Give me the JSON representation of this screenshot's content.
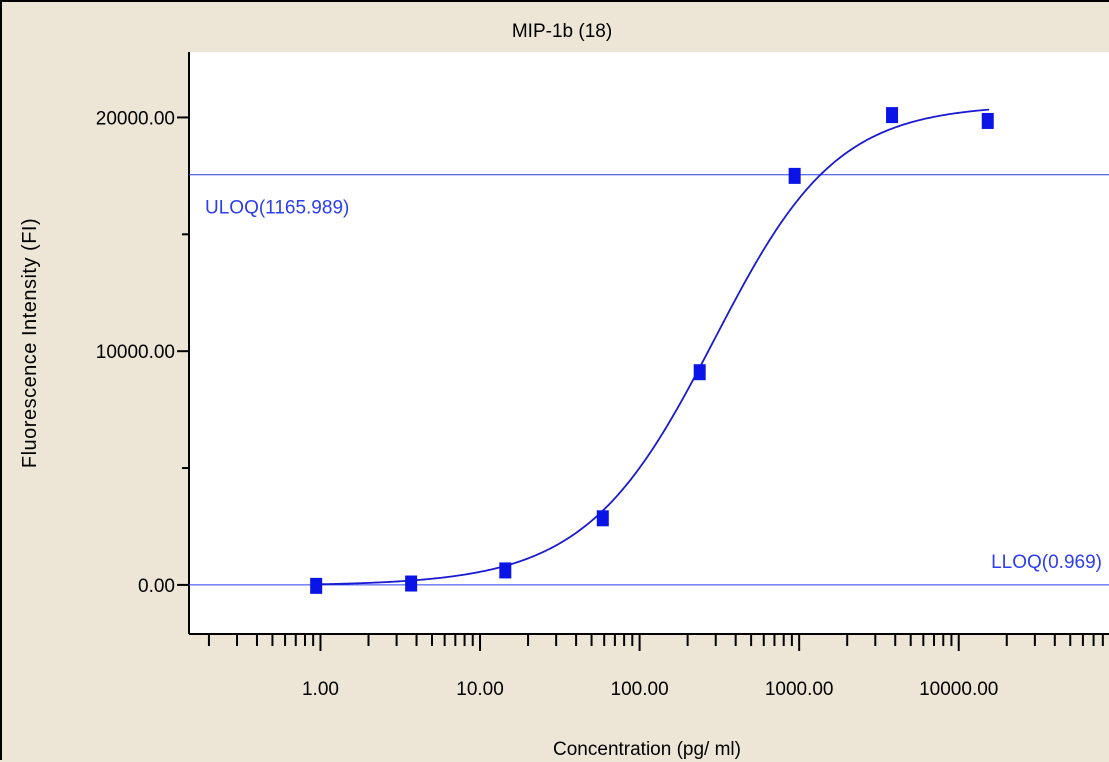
{
  "chart_data": {
    "type": "scatter",
    "title": "MIP-1b (18)",
    "xlabel": "Concentration (pg/ ml)",
    "ylabel": "Fluorescence Intensity (FI)",
    "x_scale": "log",
    "xlim": [
      0.15,
      90000
    ],
    "ylim": [
      -2100,
      22800
    ],
    "x_tick_labels": [
      {
        "value": 1,
        "label": "1.00"
      },
      {
        "value": 10,
        "label": "10.00"
      },
      {
        "value": 100,
        "label": "100.00"
      },
      {
        "value": 1000,
        "label": "1000.00"
      },
      {
        "value": 10000,
        "label": "10000.00"
      }
    ],
    "y_tick_labels": [
      {
        "value": 0,
        "label": "0.00"
      },
      {
        "value": 10000,
        "label": "10000.00"
      },
      {
        "value": 20000,
        "label": "20000.00"
      }
    ],
    "y_minor_ticks": [
      5000,
      15000
    ],
    "series": [
      {
        "type": "scatter",
        "marker": "square",
        "color": "#0a14e6",
        "points": [
          {
            "x": 0.94,
            "y": -40
          },
          {
            "x": 3.7,
            "y": 60
          },
          {
            "x": 14.4,
            "y": 620
          },
          {
            "x": 58.8,
            "y": 2850
          },
          {
            "x": 238,
            "y": 9100
          },
          {
            "x": 937,
            "y": 17500
          },
          {
            "x": 3820,
            "y": 20100
          },
          {
            "x": 15200,
            "y": 19850
          }
        ]
      },
      {
        "type": "line",
        "name": "fit",
        "color": "#1a1ad0",
        "model": "5PL",
        "params": {
          "bottom": -30,
          "top": 20550,
          "ec50": 330,
          "hill": 1.15,
          "asym": 0.88
        },
        "x_range": [
          0.9,
          15500
        ]
      }
    ],
    "reference_lines": [
      {
        "name": "ULOQ",
        "label": "ULOQ(1165.989)",
        "y": 17550,
        "color": "#2c3ef0"
      },
      {
        "name": "LLOQ",
        "label": "LLOQ(0.969)",
        "y": 0,
        "color": "#2c3ef0"
      }
    ],
    "grid": false
  }
}
